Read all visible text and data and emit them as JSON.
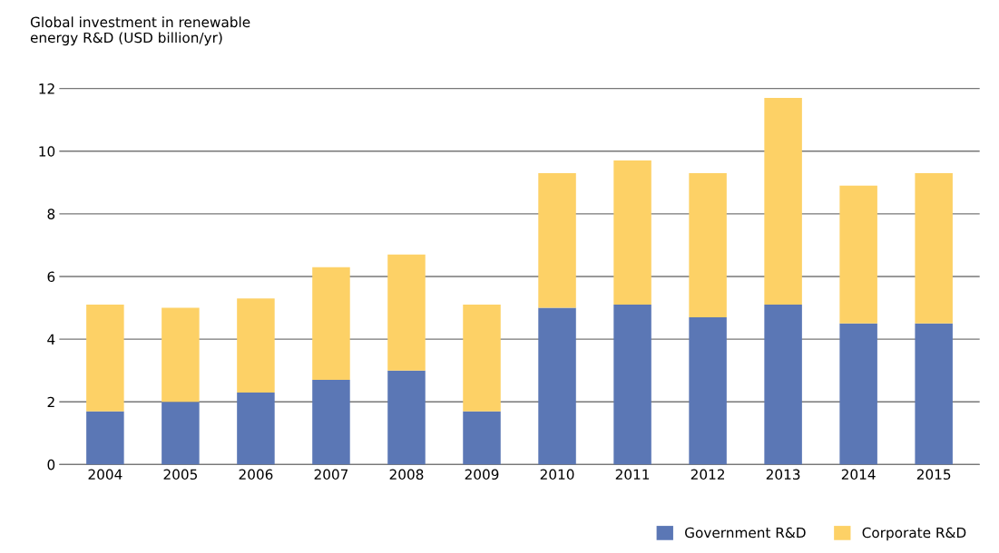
{
  "chart_data": {
    "type": "bar",
    "ylabel": "Global investment in renewable\nenergy R&D (USD billion/yr)",
    "categories": [
      "2004",
      "2005",
      "2006",
      "2007",
      "2008",
      "2009",
      "2010",
      "2011",
      "2012",
      "2013",
      "2014",
      "2015"
    ],
    "stacked": true,
    "series": [
      {
        "name": "Government R&D",
        "color": "#5b77b5",
        "values": [
          1.7,
          2.0,
          2.3,
          2.7,
          3.0,
          1.7,
          5.0,
          5.1,
          4.7,
          5.1,
          4.5,
          4.5
        ]
      },
      {
        "name": "Corporate R&D",
        "color": "#fdd166",
        "values": [
          3.4,
          3.0,
          3.0,
          3.6,
          3.7,
          3.4,
          4.3,
          4.6,
          4.6,
          6.6,
          4.4,
          4.8
        ]
      }
    ],
    "ylim": [
      0,
      12
    ],
    "yticks": [
      0,
      2,
      4,
      6,
      8,
      10,
      12
    ],
    "grid": "y",
    "legend": "bottom right"
  }
}
